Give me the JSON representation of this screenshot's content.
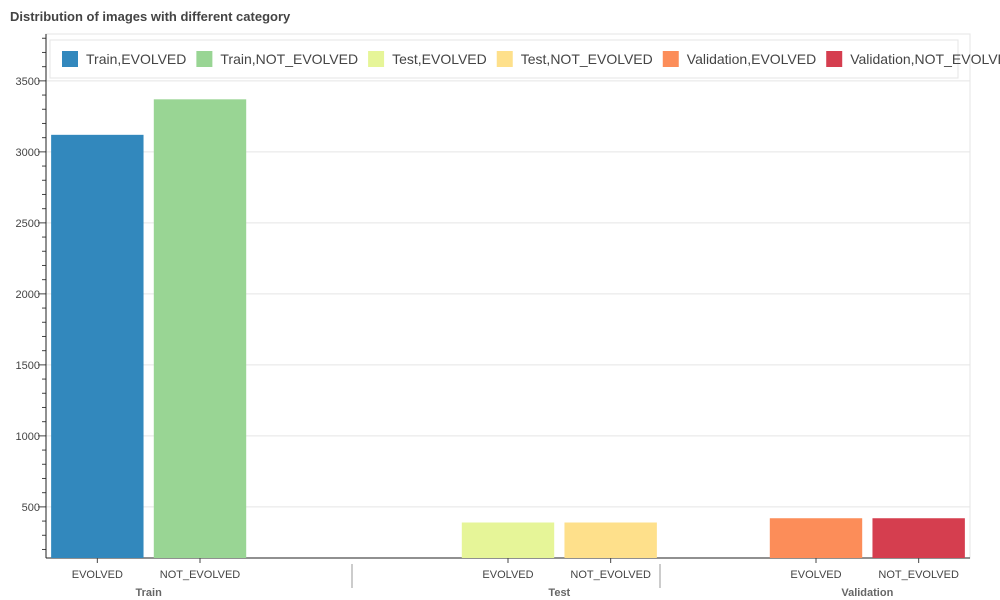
{
  "chart_data": {
    "type": "bar",
    "title": "Distribution of images with different category",
    "groups": [
      "Train",
      "Test",
      "Validation"
    ],
    "categories": [
      "EVOLVED",
      "NOT_EVOLVED"
    ],
    "bars": [
      {
        "group": "Train",
        "category": "EVOLVED",
        "value": 3120,
        "legend": "Train,EVOLVED",
        "color": "#3288bd"
      },
      {
        "group": "Train",
        "category": "NOT_EVOLVED",
        "value": 3370,
        "legend": "Train,NOT_EVOLVED",
        "color": "#99d594"
      },
      {
        "group": "Test",
        "category": "EVOLVED",
        "value": 390,
        "legend": "Test,EVOLVED",
        "color": "#e6f598"
      },
      {
        "group": "Test",
        "category": "NOT_EVOLVED",
        "value": 390,
        "legend": "Test,NOT_EVOLVED",
        "color": "#fee08b"
      },
      {
        "group": "Validation",
        "category": "EVOLVED",
        "value": 420,
        "legend": "Validation,EVOLVED",
        "color": "#fc8d59"
      },
      {
        "group": "Validation",
        "category": "NOT_EVOLVED",
        "value": 420,
        "legend": "Validation,NOT_EVOLVED",
        "color": "#d53e4f"
      }
    ],
    "y_ticks": [
      "500",
      "1000",
      "1500",
      "2000",
      "2500",
      "3000",
      "3500"
    ],
    "ylim": [
      140,
      3830
    ],
    "xlabel": "",
    "ylabel": "",
    "grid": true,
    "legend_position": "top"
  }
}
